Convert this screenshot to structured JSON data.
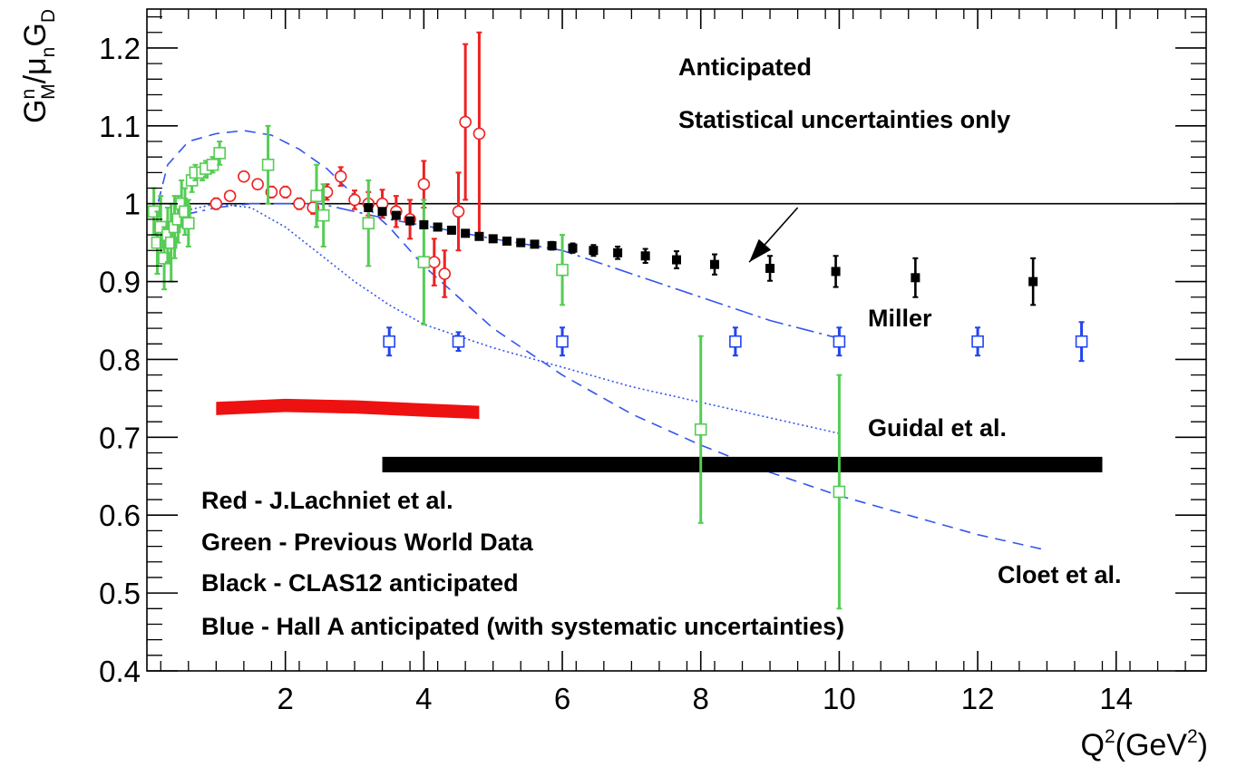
{
  "chart_data": {
    "type": "scatter",
    "xlim": [
      0,
      15.3
    ],
    "ylim": [
      0.4,
      1.25
    ],
    "x_ticks": [
      2,
      4,
      6,
      8,
      10,
      12,
      14
    ],
    "x_tick_labels": [
      "2",
      "4",
      "6",
      "8",
      "10",
      "12",
      "14"
    ],
    "y_ticks": [
      0.4,
      0.5,
      0.6,
      0.7,
      0.8,
      0.9,
      1,
      1.1,
      1.2
    ],
    "y_tick_labels": [
      "0.4",
      "0.5",
      "0.6",
      "0.7",
      "0.8",
      "0.9",
      "1",
      "1.1",
      "1.2"
    ],
    "xlabel": {
      "base": "Q",
      "sup": "2",
      "mid": "(GeV",
      "sup2": "2",
      "end": ")"
    },
    "ylabel": {
      "g": "G",
      "g_sup": "n",
      "g_sub": "M",
      "slash": "/",
      "mu": "μ",
      "mu_sub": "n",
      "gd": "G",
      "gd_sub": "D"
    },
    "grid": false,
    "reference_line_y": 1.0,
    "annotations": {
      "anticipated": "Anticipated",
      "stat_only": "Statistical uncertainties only",
      "miller": "Miller",
      "guidal": "Guidal et al.",
      "cloet": "Cloet et al."
    },
    "legend_text": [
      "Red - J.Lachniet et al.",
      "Green - Previous World Data",
      "Black - CLAS12 anticipated",
      "Blue - Hall A anticipated (with systematic uncertainties)"
    ],
    "series": [
      {
        "color": "#ee2222",
        "marker": "open-circle",
        "points": [
          {
            "x": 1.0,
            "y": 1.0,
            "err": 0.007
          },
          {
            "x": 1.2,
            "y": 1.01,
            "err": 0.006
          },
          {
            "x": 1.4,
            "y": 1.035,
            "err": 0.006
          },
          {
            "x": 1.6,
            "y": 1.025,
            "err": 0.006
          },
          {
            "x": 1.8,
            "y": 1.015,
            "err": 0.007
          },
          {
            "x": 2.0,
            "y": 1.015,
            "err": 0.007
          },
          {
            "x": 2.2,
            "y": 1.0,
            "err": 0.007
          },
          {
            "x": 2.4,
            "y": 0.995,
            "err": 0.008
          },
          {
            "x": 2.6,
            "y": 1.015,
            "err": 0.01
          },
          {
            "x": 2.8,
            "y": 1.035,
            "err": 0.012
          },
          {
            "x": 3.0,
            "y": 1.005,
            "err": 0.012
          },
          {
            "x": 3.2,
            "y": 1.0,
            "err": 0.015
          },
          {
            "x": 3.4,
            "y": 1.0,
            "err": 0.018
          },
          {
            "x": 3.6,
            "y": 0.99,
            "err": 0.02
          },
          {
            "x": 3.8,
            "y": 0.98,
            "err": 0.025
          },
          {
            "x": 4.0,
            "y": 1.025,
            "err": 0.03
          },
          {
            "x": 4.15,
            "y": 0.925,
            "err": 0.03
          },
          {
            "x": 4.3,
            "y": 0.91,
            "err": 0.03
          },
          {
            "x": 4.5,
            "y": 0.99,
            "err": 0.05
          },
          {
            "x": 4.6,
            "y": 1.105,
            "err": 0.1
          },
          {
            "x": 4.8,
            "y": 1.09,
            "err": 0.13
          }
        ]
      },
      {
        "color": "#55cc55",
        "marker": "open-square",
        "points": [
          {
            "x": 0.1,
            "y": 0.99,
            "err": 0.03
          },
          {
            "x": 0.15,
            "y": 0.95,
            "err": 0.04
          },
          {
            "x": 0.2,
            "y": 0.97,
            "err": 0.04
          },
          {
            "x": 0.25,
            "y": 0.93,
            "err": 0.04
          },
          {
            "x": 0.3,
            "y": 0.96,
            "err": 0.035
          },
          {
            "x": 0.35,
            "y": 0.95,
            "err": 0.05
          },
          {
            "x": 0.4,
            "y": 0.97,
            "err": 0.04
          },
          {
            "x": 0.45,
            "y": 0.98,
            "err": 0.03
          },
          {
            "x": 0.5,
            "y": 1.0,
            "err": 0.03
          },
          {
            "x": 0.55,
            "y": 0.99,
            "err": 0.03
          },
          {
            "x": 0.6,
            "y": 0.975,
            "err": 0.03
          },
          {
            "x": 0.65,
            "y": 1.03,
            "err": 0.015
          },
          {
            "x": 0.7,
            "y": 1.04,
            "err": 0.01
          },
          {
            "x": 0.8,
            "y": 1.04,
            "err": 0.01
          },
          {
            "x": 0.85,
            "y": 1.045,
            "err": 0.01
          },
          {
            "x": 0.95,
            "y": 1.05,
            "err": 0.01
          },
          {
            "x": 1.05,
            "y": 1.065,
            "err": 0.015
          },
          {
            "x": 1.75,
            "y": 1.05,
            "err": 0.05
          },
          {
            "x": 2.45,
            "y": 1.01,
            "err": 0.04
          },
          {
            "x": 2.55,
            "y": 0.985,
            "err": 0.04
          },
          {
            "x": 3.2,
            "y": 0.975,
            "err": 0.055
          },
          {
            "x": 4.0,
            "y": 0.925,
            "err": 0.08
          },
          {
            "x": 6.0,
            "y": 0.915,
            "err": 0.045
          },
          {
            "x": 8.0,
            "y": 0.71,
            "err": 0.12
          },
          {
            "x": 10.0,
            "y": 0.63,
            "err": 0.15
          }
        ]
      },
      {
        "color": "#000000",
        "marker": "filled-square",
        "points": [
          {
            "x": 3.2,
            "y": 0.995,
            "err": 0.003
          },
          {
            "x": 3.4,
            "y": 0.99,
            "err": 0.003
          },
          {
            "x": 3.6,
            "y": 0.985,
            "err": 0.003
          },
          {
            "x": 3.8,
            "y": 0.978,
            "err": 0.003
          },
          {
            "x": 4.0,
            "y": 0.973,
            "err": 0.003
          },
          {
            "x": 4.2,
            "y": 0.97,
            "err": 0.003
          },
          {
            "x": 4.4,
            "y": 0.966,
            "err": 0.003
          },
          {
            "x": 4.6,
            "y": 0.962,
            "err": 0.003
          },
          {
            "x": 4.8,
            "y": 0.958,
            "err": 0.003
          },
          {
            "x": 5.0,
            "y": 0.955,
            "err": 0.003
          },
          {
            "x": 5.2,
            "y": 0.952,
            "err": 0.004
          },
          {
            "x": 5.4,
            "y": 0.95,
            "err": 0.004
          },
          {
            "x": 5.6,
            "y": 0.948,
            "err": 0.004
          },
          {
            "x": 5.85,
            "y": 0.946,
            "err": 0.005
          },
          {
            "x": 6.15,
            "y": 0.943,
            "err": 0.006
          },
          {
            "x": 6.45,
            "y": 0.94,
            "err": 0.007
          },
          {
            "x": 6.8,
            "y": 0.937,
            "err": 0.008
          },
          {
            "x": 7.2,
            "y": 0.933,
            "err": 0.009
          },
          {
            "x": 7.65,
            "y": 0.928,
            "err": 0.011
          },
          {
            "x": 8.2,
            "y": 0.922,
            "err": 0.013
          },
          {
            "x": 9.0,
            "y": 0.917,
            "err": 0.016
          },
          {
            "x": 9.95,
            "y": 0.913,
            "err": 0.02
          },
          {
            "x": 11.1,
            "y": 0.905,
            "err": 0.025
          },
          {
            "x": 12.8,
            "y": 0.9,
            "err": 0.03
          }
        ]
      },
      {
        "color": "#2244ee",
        "marker": "open-square",
        "points": [
          {
            "x": 3.5,
            "y": 0.823,
            "err": 0.018
          },
          {
            "x": 4.5,
            "y": 0.823,
            "err": 0.012
          },
          {
            "x": 6.0,
            "y": 0.823,
            "err": 0.018
          },
          {
            "x": 8.5,
            "y": 0.823,
            "err": 0.018
          },
          {
            "x": 10.0,
            "y": 0.823,
            "err": 0.018
          },
          {
            "x": 12.0,
            "y": 0.823,
            "err": 0.018
          },
          {
            "x": 13.5,
            "y": 0.823,
            "err": 0.025
          }
        ]
      }
    ],
    "bands": [
      {
        "color": "#ee1111",
        "points": [
          [
            1.0,
            0.737
          ],
          [
            2.0,
            0.741
          ],
          [
            3.0,
            0.739
          ],
          [
            4.0,
            0.735
          ],
          [
            4.8,
            0.732
          ]
        ],
        "width": 0.017
      },
      {
        "color": "#000000",
        "points": [
          [
            3.4,
            0.665
          ],
          [
            13.8,
            0.665
          ]
        ],
        "width": 0.02
      }
    ],
    "curves": [
      {
        "color": "#3355ee",
        "style": "dashed",
        "points": [
          [
            0.1,
            0.98
          ],
          [
            0.3,
            1.05
          ],
          [
            0.6,
            1.08
          ],
          [
            1.0,
            1.09
          ],
          [
            1.4,
            1.094
          ],
          [
            1.8,
            1.088
          ],
          [
            2.2,
            1.07
          ],
          [
            2.6,
            1.045
          ],
          [
            3.0,
            1.01
          ],
          [
            3.5,
            0.97
          ],
          [
            4.0,
            0.92
          ],
          [
            4.5,
            0.88
          ],
          [
            5.0,
            0.84
          ],
          [
            6.0,
            0.78
          ],
          [
            7.0,
            0.73
          ],
          [
            8.0,
            0.69
          ],
          [
            9.0,
            0.655
          ],
          [
            10.0,
            0.625
          ],
          [
            11.0,
            0.6
          ],
          [
            12.0,
            0.575
          ],
          [
            13.0,
            0.555
          ]
        ]
      },
      {
        "color": "#3355ee",
        "style": "dashdot",
        "points": [
          [
            0.1,
            0.96
          ],
          [
            0.5,
            0.985
          ],
          [
            1.0,
            0.995
          ],
          [
            1.5,
            1.0
          ],
          [
            2.0,
            1.0
          ],
          [
            2.5,
            1.0
          ],
          [
            3.0,
            0.99
          ],
          [
            3.5,
            0.98
          ],
          [
            4.0,
            0.972
          ],
          [
            5.0,
            0.955
          ],
          [
            6.0,
            0.94
          ],
          [
            7.0,
            0.91
          ],
          [
            8.0,
            0.88
          ],
          [
            9.0,
            0.85
          ],
          [
            10.0,
            0.827
          ]
        ]
      },
      {
        "color": "#3355ee",
        "style": "dotted",
        "points": [
          [
            0.1,
            0.96
          ],
          [
            0.5,
            0.99
          ],
          [
            1.0,
            1.0
          ],
          [
            1.5,
            0.995
          ],
          [
            2.0,
            0.97
          ],
          [
            2.5,
            0.935
          ],
          [
            3.0,
            0.9
          ],
          [
            3.5,
            0.87
          ],
          [
            4.0,
            0.845
          ],
          [
            5.0,
            0.815
          ],
          [
            6.0,
            0.79
          ],
          [
            7.0,
            0.765
          ],
          [
            8.0,
            0.745
          ],
          [
            9.0,
            0.725
          ],
          [
            10.0,
            0.705
          ]
        ]
      }
    ],
    "arrow": {
      "from": [
        9.4,
        0.995
      ],
      "to": [
        8.7,
        0.925
      ]
    }
  }
}
